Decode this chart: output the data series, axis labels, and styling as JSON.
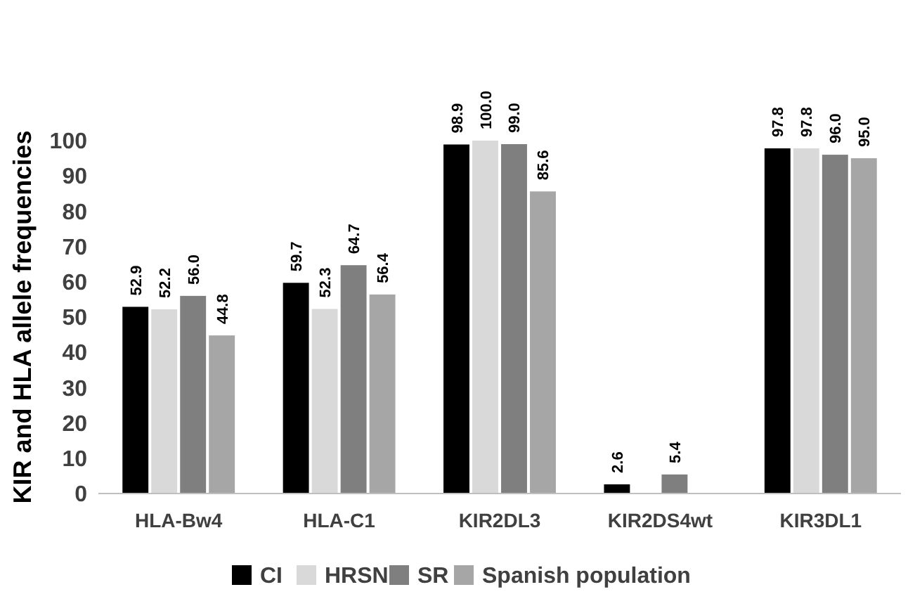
{
  "chart_data": {
    "type": "bar",
    "ylabel": "KIR and HLA allele frequencies",
    "categories": [
      "HLA-Bw4",
      "HLA-C1",
      "KIR2DL3",
      "KIR2DS4wt",
      "KIR3DL1"
    ],
    "series": [
      {
        "name": "CI",
        "color": "#000000",
        "values": [
          52.9,
          59.7,
          98.9,
          2.6,
          97.8
        ],
        "value_labels": [
          "52.9",
          "59.7",
          "98.9",
          "2.6",
          "97.8"
        ]
      },
      {
        "name": "HRSN",
        "color": "#d9d9d9",
        "values": [
          52.2,
          52.3,
          100.0,
          null,
          97.8
        ],
        "value_labels": [
          "52.2",
          "52.3",
          "100.0",
          null,
          "97.8"
        ]
      },
      {
        "name": "SR",
        "color": "#7f7f7f",
        "values": [
          56.0,
          64.7,
          99.0,
          5.4,
          96.0
        ],
        "value_labels": [
          "56.0",
          "64.7",
          "99.0",
          "5.4",
          "96.0"
        ]
      },
      {
        "name": "Spanish population",
        "color": "#a6a6a6",
        "values": [
          44.8,
          56.4,
          85.6,
          null,
          95.0
        ],
        "value_labels": [
          "44.8",
          "56.4",
          "85.6",
          null,
          "95.0"
        ]
      }
    ],
    "ylim": [
      0,
      100
    ],
    "yticks": [
      0,
      10,
      20,
      30,
      40,
      50,
      60,
      70,
      80,
      90,
      100
    ],
    "grid": false,
    "legend": "bottom"
  }
}
